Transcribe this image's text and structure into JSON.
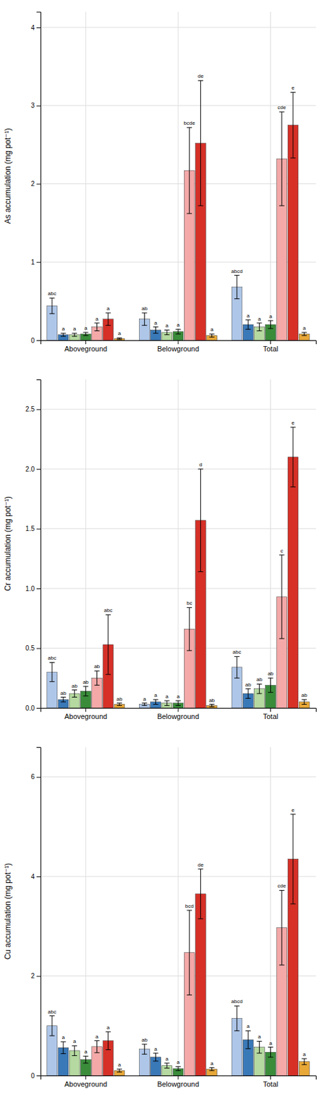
{
  "chart_data": [
    {
      "type": "bar",
      "ylabel": "As accumulation (mg pot⁻¹)",
      "ylim": [
        0,
        4.2
      ],
      "yticks": [
        0,
        1,
        2,
        3,
        4
      ],
      "grid": true,
      "categories": [
        "Aboveground",
        "Belowground",
        "Total"
      ],
      "series": [
        {
          "color": "#aec6e8",
          "values": [
            0.44,
            0.27,
            0.68
          ],
          "errors": [
            0.1,
            0.08,
            0.15
          ],
          "annotations": [
            "abc",
            "ab",
            "abcd"
          ]
        },
        {
          "color": "#3a79b8",
          "values": [
            0.07,
            0.13,
            0.2
          ],
          "errors": [
            0.02,
            0.04,
            0.06
          ],
          "annotations": [
            "a",
            "a",
            "a"
          ]
        },
        {
          "color": "#b5d9a0",
          "values": [
            0.07,
            0.1,
            0.17
          ],
          "errors": [
            0.02,
            0.03,
            0.05
          ],
          "annotations": [
            "a",
            "a",
            "a"
          ]
        },
        {
          "color": "#3a8c3a",
          "values": [
            0.08,
            0.11,
            0.2
          ],
          "errors": [
            0.02,
            0.03,
            0.05
          ],
          "annotations": [
            "a",
            "a",
            "a"
          ]
        },
        {
          "color": "#f4a9a8",
          "values": [
            0.17,
            2.17,
            2.32
          ],
          "errors": [
            0.05,
            0.55,
            0.6
          ],
          "annotations": [
            "a",
            "bcde",
            "cde"
          ]
        },
        {
          "color": "#d63027",
          "values": [
            0.27,
            2.52,
            2.75
          ],
          "errors": [
            0.08,
            0.8,
            0.42
          ],
          "annotations": [
            "a",
            "de",
            "e"
          ]
        },
        {
          "color": "#e8a838",
          "values": [
            0.02,
            0.06,
            0.08
          ],
          "errors": [
            0.01,
            0.02,
            0.02
          ],
          "annotations": [
            "a",
            "a",
            "a"
          ]
        }
      ]
    },
    {
      "type": "bar",
      "ylabel": "Cr accumulation (mg pot⁻¹)",
      "ylim": [
        0,
        2.75
      ],
      "yticks": [
        {
          "value": 0,
          "label": "0.0"
        },
        0.5,
        {
          "value": 1,
          "label": "1.0"
        },
        1.5,
        {
          "value": 2,
          "label": "2.0"
        },
        2.5
      ],
      "grid": true,
      "categories": [
        "Aboveground",
        "Belowground",
        "Total"
      ],
      "series": [
        {
          "color": "#aec6e8",
          "values": [
            0.3,
            0.03,
            0.34
          ],
          "errors": [
            0.08,
            0.01,
            0.09
          ],
          "annotations": [
            "abc",
            "a",
            "abc"
          ]
        },
        {
          "color": "#3a79b8",
          "values": [
            0.07,
            0.05,
            0.12
          ],
          "errors": [
            0.02,
            0.02,
            0.04
          ],
          "annotations": [
            "ab",
            "a",
            "ab"
          ]
        },
        {
          "color": "#b5d9a0",
          "values": [
            0.12,
            0.04,
            0.16
          ],
          "errors": [
            0.03,
            0.02,
            0.04
          ],
          "annotations": [
            "ab",
            "a",
            "ab"
          ]
        },
        {
          "color": "#3a8c3a",
          "values": [
            0.14,
            0.04,
            0.19
          ],
          "errors": [
            0.04,
            0.02,
            0.06
          ],
          "annotations": [
            "ab",
            "a",
            "ab"
          ]
        },
        {
          "color": "#f4a9a8",
          "values": [
            0.25,
            0.66,
            0.93
          ],
          "errors": [
            0.06,
            0.18,
            0.35
          ],
          "annotations": [
            "ab",
            "bc",
            "c"
          ]
        },
        {
          "color": "#d63027",
          "values": [
            0.53,
            1.57,
            2.1
          ],
          "errors": [
            0.25,
            0.43,
            0.25
          ],
          "annotations": [
            "abc",
            "d",
            "e"
          ]
        },
        {
          "color": "#e8a838",
          "values": [
            0.03,
            0.02,
            0.05
          ],
          "errors": [
            0.01,
            0.01,
            0.02
          ],
          "annotations": [
            "ab",
            "ab",
            "ab"
          ]
        }
      ]
    },
    {
      "type": "bar",
      "ylabel": "Cu accumulation (mg pot⁻¹)",
      "ylim": [
        0,
        6.6
      ],
      "yticks": [
        0,
        2,
        4,
        6
      ],
      "grid": true,
      "categories": [
        "Aboveground",
        "Belowground",
        "Total"
      ],
      "series": [
        {
          "color": "#aec6e8",
          "values": [
            1.0,
            0.53,
            1.15
          ],
          "errors": [
            0.2,
            0.1,
            0.25
          ],
          "annotations": [
            "abc",
            "ab",
            "abcd"
          ]
        },
        {
          "color": "#3a79b8",
          "values": [
            0.56,
            0.37,
            0.72
          ],
          "errors": [
            0.12,
            0.08,
            0.18
          ],
          "annotations": [
            "a",
            "a",
            "a"
          ]
        },
        {
          "color": "#b5d9a0",
          "values": [
            0.5,
            0.2,
            0.57
          ],
          "errors": [
            0.1,
            0.05,
            0.12
          ],
          "annotations": [
            "a",
            "a",
            "a"
          ]
        },
        {
          "color": "#3a8c3a",
          "values": [
            0.32,
            0.14,
            0.47
          ],
          "errors": [
            0.07,
            0.04,
            0.1
          ],
          "annotations": [
            "a",
            "a",
            "a"
          ]
        },
        {
          "color": "#f4a9a8",
          "values": [
            0.58,
            2.47,
            2.97
          ],
          "errors": [
            0.12,
            0.85,
            0.75
          ],
          "annotations": [
            "a",
            "bcd",
            "cde"
          ]
        },
        {
          "color": "#d63027",
          "values": [
            0.7,
            3.65,
            4.35
          ],
          "errors": [
            0.18,
            0.5,
            0.9
          ],
          "annotations": [
            "a",
            "de",
            "e"
          ]
        },
        {
          "color": "#e8a838",
          "values": [
            0.1,
            0.13,
            0.28
          ],
          "errors": [
            0.03,
            0.03,
            0.06
          ],
          "annotations": [
            "a",
            "a",
            "a"
          ]
        }
      ]
    }
  ]
}
